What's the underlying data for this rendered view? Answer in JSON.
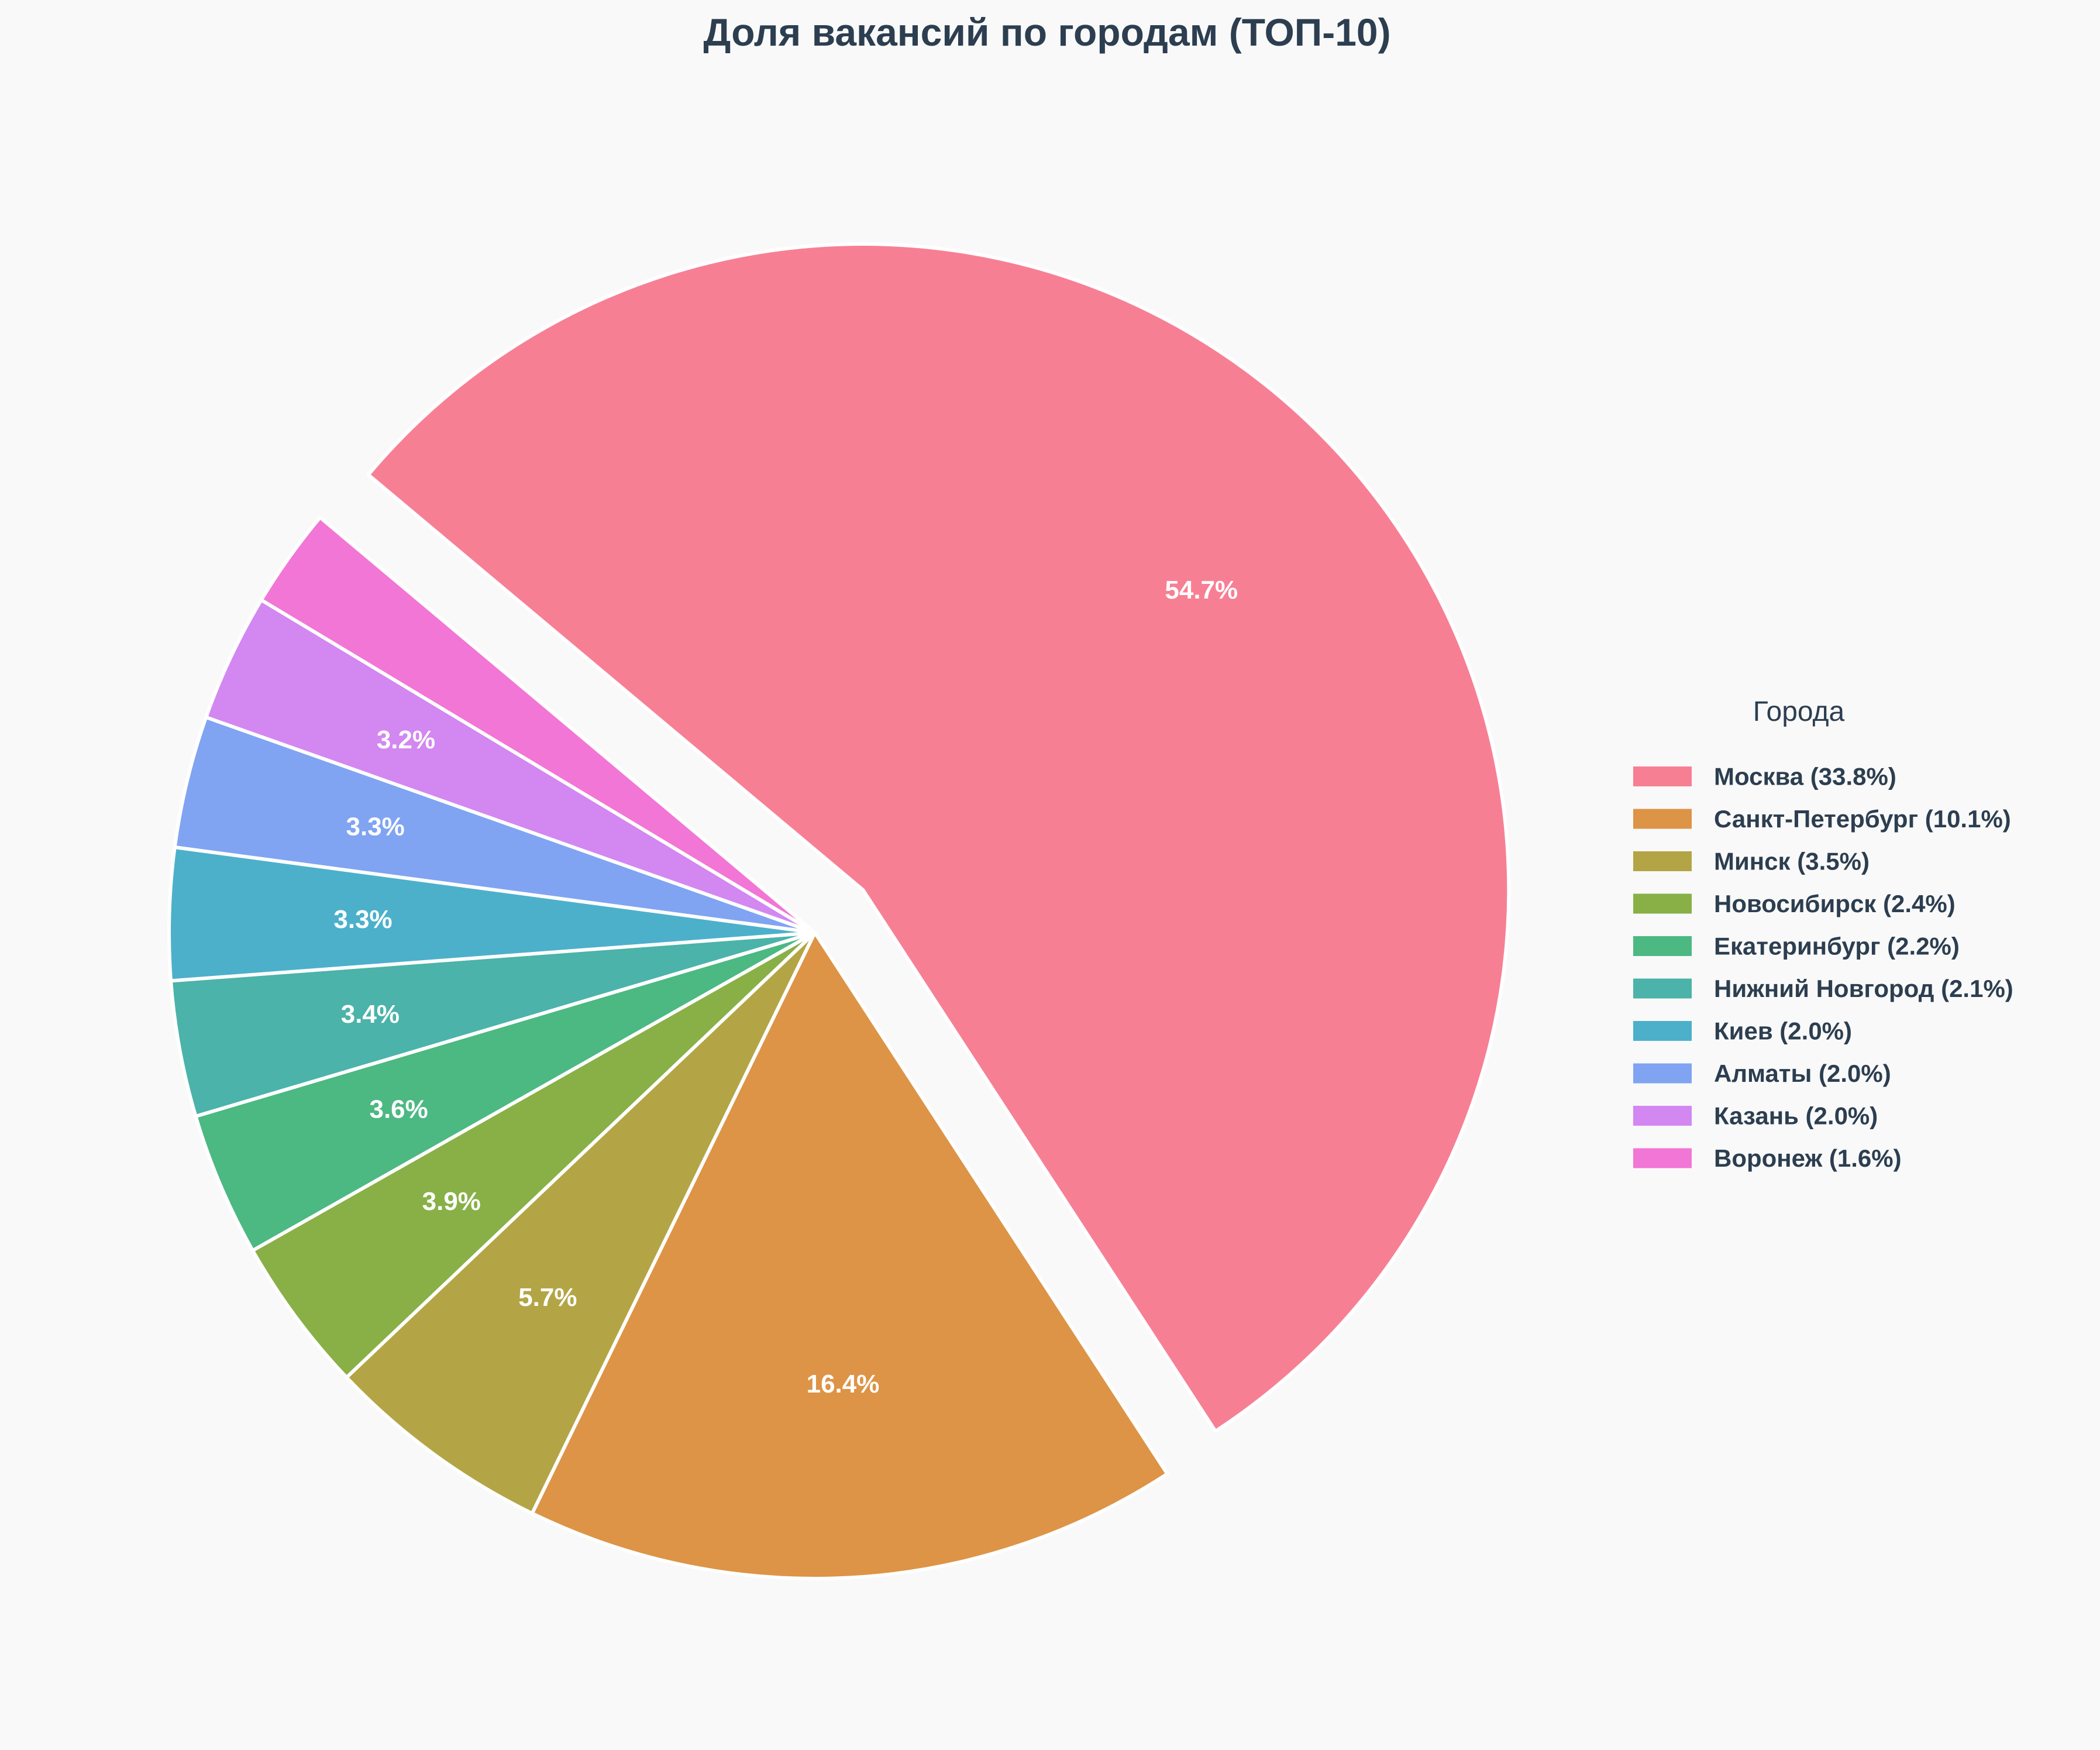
{
  "chart_data": {
    "type": "pie",
    "title": "Доля вакансий по городам (ТОП-10)",
    "legend_title": "Города",
    "legend_position": "right",
    "start_angle_deg": 140,
    "direction": "clockwise",
    "exploded_slice": "Москва",
    "slices": [
      {
        "name": "Москва",
        "legend_label": "Москва (33.8%)",
        "percent": 54.7,
        "label": "54.7%",
        "color": "#f77f94"
      },
      {
        "name": "Санкт-Петербург",
        "legend_label": "Санкт-Петербург (10.1%)",
        "percent": 16.4,
        "label": "16.4%",
        "color": "#dd9446"
      },
      {
        "name": "Минск",
        "legend_label": "Минск (3.5%)",
        "percent": 5.7,
        "label": "5.7%",
        "color": "#b3a545"
      },
      {
        "name": "Новосибирск",
        "legend_label": "Новосибирск (2.4%)",
        "percent": 3.9,
        "label": "3.9%",
        "color": "#88b047"
      },
      {
        "name": "Екатеринбург",
        "legend_label": "Екатеринбург (2.2%)",
        "percent": 3.6,
        "label": "3.6%",
        "color": "#4cb882"
      },
      {
        "name": "Нижний Новгород",
        "legend_label": "Нижний Новгород (2.1%)",
        "percent": 3.4,
        "label": "3.4%",
        "color": "#4bb3a9"
      },
      {
        "name": "Киев",
        "legend_label": "Киев (2.0%)",
        "percent": 3.3,
        "label": "3.3%",
        "color": "#4cb0cb"
      },
      {
        "name": "Алматы",
        "legend_label": "Алматы (2.0%)",
        "percent": 3.3,
        "label": "3.3%",
        "color": "#80a4f2"
      },
      {
        "name": "Казань",
        "legend_label": "Казань (2.0%)",
        "percent": 3.2,
        "label": "3.2%",
        "color": "#d387f0"
      },
      {
        "name": "Воронеж",
        "legend_label": "Воронеж (1.6%)",
        "percent": 2.5,
        "label": "",
        "color": "#f276d5"
      }
    ]
  }
}
